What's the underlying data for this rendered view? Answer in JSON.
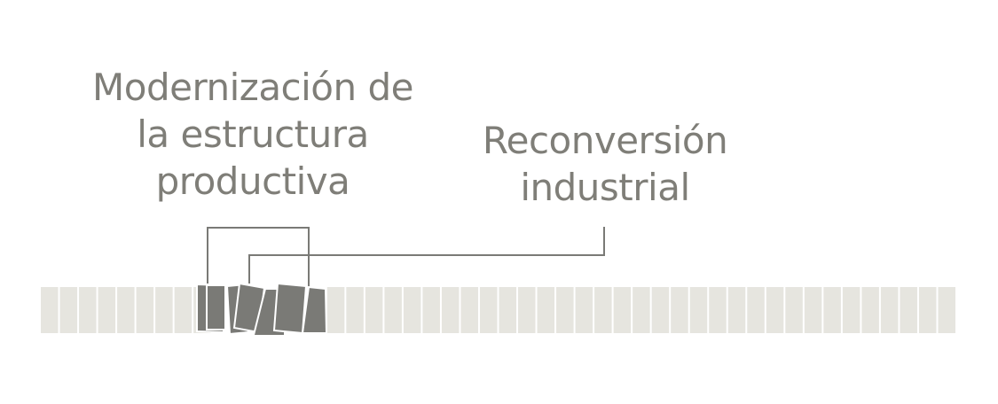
{
  "labels": {
    "modernizacion": [
      "Modernización de",
      "la estructura",
      "productiva"
    ],
    "reconversion": [
      "Reconversión",
      "industrial"
    ]
  },
  "strip": {
    "block_count": 48,
    "disrupted_blocks": [
      9,
      10,
      11,
      12,
      13,
      14
    ]
  },
  "colors": {
    "text": "#7f7e78",
    "block": "#e6e5df",
    "block_active": "#7a7a76",
    "connector": "#7a7a76"
  }
}
